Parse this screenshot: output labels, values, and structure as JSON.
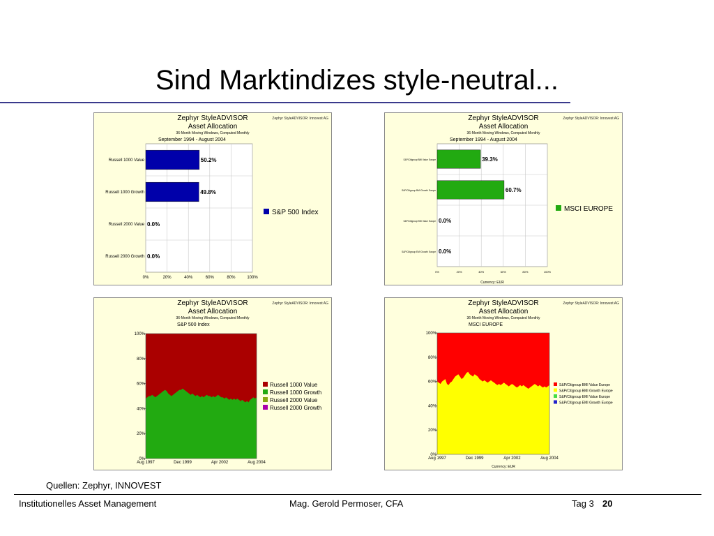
{
  "slide": {
    "title": "Sind Marktindizes style-neutral...",
    "source": "Quellen: Zephyr, INNOVEST",
    "footer_left": "Institutionelles Asset Management",
    "footer_center": "Mag. Gerold Permoser, CFA",
    "footer_tag": "Tag 3",
    "footer_page": "20"
  },
  "panels": [
    {
      "header": "Zephyr StyleADVISOR",
      "version": "Zephyr StyleADVISOR: Innovest AG",
      "subtitle": "Asset Allocation",
      "window": "36-Month Moving Windows, Computed Monthly",
      "period": "September 1994 - August 2004",
      "currency": ""
    },
    {
      "header": "Zephyr StyleADVISOR",
      "version": "Zephyr StyleADVISOR: Innovest AG",
      "subtitle": "Asset Allocation",
      "window": "36-Month Moving Windows, Computed Monthly",
      "period": "September 1994 - August 2004",
      "currency": "Currency: EUR"
    },
    {
      "header": "Zephyr StyleADVISOR",
      "version": "Zephyr StyleADVISOR: Innovest AG",
      "subtitle": "Asset Allocation",
      "window": "36-Month Moving Windows, Computed Monthly",
      "period": "S&P 500 Index",
      "currency": ""
    },
    {
      "header": "Zephyr StyleADVISOR",
      "version": "Zephyr StyleADVISOR: Innovest AG",
      "subtitle": "Asset Allocation",
      "window": "36-Month Moving Windows, Computed Monthly",
      "period": "MSCI EUROPE",
      "currency": "Currency: EUR"
    }
  ],
  "chart_data": [
    {
      "type": "bar",
      "orientation": "horizontal",
      "categories": [
        "Russell 1000 Value",
        "Russell 1000 Growth",
        "Russell 2000 Value",
        "Russell 2000 Growth"
      ],
      "values": [
        50.2,
        49.8,
        0.0,
        0.0
      ],
      "value_labels": [
        "50.2%",
        "49.8%",
        "0.0%",
        "0.0%"
      ],
      "x_ticks": [
        "0%",
        "20%",
        "40%",
        "60%",
        "80%",
        "100%"
      ],
      "xlim": [
        0,
        100
      ],
      "legend": [
        "S&P 500 Index"
      ],
      "color": "#0000aa",
      "grid": true
    },
    {
      "type": "bar",
      "orientation": "horizontal",
      "categories": [
        "S&P/Citigroup BMI Value Europe",
        "S&P/Citigroup BMI Growth Europe",
        "S&P/Citigroup EMI Value Europe",
        "S&P/Citigroup EMI Growth Europe"
      ],
      "values": [
        39.3,
        60.7,
        0.0,
        0.0
      ],
      "value_labels": [
        "39.3%",
        "60.7%",
        "0.0%",
        "0.0%"
      ],
      "x_ticks": [
        "0%",
        "20%",
        "40%",
        "60%",
        "80%",
        "100%"
      ],
      "xlim": [
        0,
        100
      ],
      "legend": [
        "MSCI EUROPE"
      ],
      "color": "#22aa11",
      "grid": true
    },
    {
      "type": "area",
      "stacked": true,
      "x_ticks": [
        "Aug 1997",
        "Dec 1999",
        "Apr 2002",
        "Aug 2004"
      ],
      "x_tick_pos": [
        0,
        0.333,
        0.667,
        1.0
      ],
      "y_ticks": [
        "0%",
        "20%",
        "40%",
        "60%",
        "80%",
        "100%"
      ],
      "ylim": [
        0,
        100
      ],
      "series": [
        {
          "name": "Russell 1000 Value",
          "color": "#aa0000"
        },
        {
          "name": "Russell 1000 Growth",
          "color": "#22aa11"
        },
        {
          "name": "Russell 2000 Value",
          "color": "#88aa11"
        },
        {
          "name": "Russell 2000 Growth",
          "color": "#aa00aa"
        }
      ],
      "boundary": [
        48,
        49,
        50,
        50,
        51,
        50,
        49,
        50,
        51,
        52,
        53,
        54,
        55,
        54,
        52,
        51,
        50,
        51,
        52,
        53,
        54,
        55,
        55,
        56,
        55,
        54,
        53,
        52,
        51,
        52,
        51,
        50,
        51,
        50,
        49,
        50,
        49,
        50,
        51,
        50,
        50,
        49,
        50,
        49,
        50,
        51,
        50,
        49,
        49,
        48,
        49,
        48,
        47,
        48,
        47,
        48,
        47,
        48,
        47,
        46,
        47,
        46,
        45,
        46,
        45,
        47,
        48,
        49,
        48,
        49
      ],
      "bottom_series": "Russell 1000 Growth",
      "top_series": "Russell 1000 Value"
    },
    {
      "type": "area",
      "stacked": true,
      "x_ticks": [
        "Aug 1997",
        "Dec 1999",
        "Apr 2002",
        "Aug 2004"
      ],
      "x_tick_pos": [
        0,
        0.333,
        0.667,
        1.0
      ],
      "y_ticks": [
        "0%",
        "20%",
        "40%",
        "60%",
        "80%",
        "100%"
      ],
      "ylim": [
        0,
        100
      ],
      "series": [
        {
          "name": "S&P/Citigroup BMI Value Europe",
          "color": "#ff0000"
        },
        {
          "name": "S&P/Citigroup BMI Growth Europe",
          "color": "#ffff00"
        },
        {
          "name": "S&P/Citigroup EMI Value Europe",
          "color": "#44dd44"
        },
        {
          "name": "S&P/Citigroup EMI Growth Europe",
          "color": "#2222cc"
        }
      ],
      "boundary": [
        60,
        59,
        58,
        60,
        61,
        62,
        58,
        57,
        59,
        60,
        62,
        64,
        65,
        66,
        64,
        62,
        63,
        65,
        67,
        68,
        66,
        65,
        64,
        66,
        65,
        64,
        62,
        61,
        60,
        61,
        60,
        59,
        60,
        61,
        60,
        59,
        58,
        57,
        58,
        57,
        58,
        59,
        58,
        57,
        56,
        57,
        58,
        57,
        56,
        55,
        56,
        57,
        56,
        57,
        56,
        55,
        54,
        55,
        56,
        57,
        58,
        57,
        56,
        57,
        56,
        55,
        56,
        55,
        56,
        57
      ],
      "bottom_series": "S&P/Citigroup BMI Growth Europe",
      "top_series": "S&P/Citigroup BMI Value Europe"
    }
  ]
}
